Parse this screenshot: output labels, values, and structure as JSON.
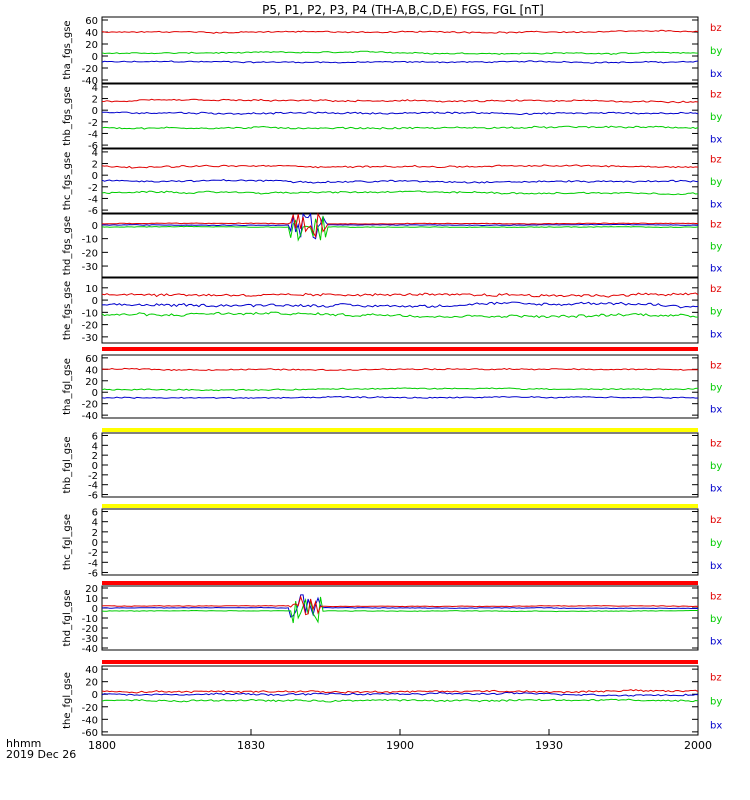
{
  "chart_data": {
    "type": "line",
    "title": "P5, P1, P2, P3, P4 (TH-A,B,C,D,E) FGS, FGL [nT]",
    "x_axis": {
      "range": [
        "1800",
        "2000"
      ],
      "ticks": [
        "1800",
        "1830",
        "1900",
        "1930",
        "2000"
      ],
      "label": "hhmm",
      "date": "2019 Dec 26"
    },
    "components": [
      {
        "name": "bz",
        "color": "#e00000"
      },
      {
        "name": "by",
        "color": "#00cc00"
      },
      {
        "name": "bx",
        "color": "#0000cc"
      }
    ],
    "panels": [
      {
        "ylabel": "tha_fgs_gse",
        "ylim": [
          -45,
          65
        ],
        "yticks": [
          "60",
          "40",
          "20",
          "0",
          "-20",
          "-40"
        ],
        "bz_level": 40,
        "by_level": 5,
        "bx_level": -10,
        "noise": 3
      },
      {
        "ylabel": "thb_fgs_gse",
        "ylim": [
          -6.5,
          4.5
        ],
        "yticks": [
          "4",
          "2",
          "0",
          "-2",
          "-4",
          "-6"
        ],
        "bz_level": 1.5,
        "by_level": -3,
        "bx_level": -0.5,
        "noise": 0.4
      },
      {
        "ylabel": "thc_fgs_gse",
        "ylim": [
          -6.5,
          4.5
        ],
        "yticks": [
          "4",
          "2",
          "0",
          "-2",
          "-4",
          "-6"
        ],
        "bz_level": 1.5,
        "by_level": -3,
        "bx_level": -1,
        "noise": 0.4
      },
      {
        "ylabel": "thd_fgs_gse",
        "ylim": [
          -38,
          8
        ],
        "yticks": [
          "0",
          "-10",
          "-20",
          "-30"
        ],
        "bz_level": 1,
        "by_level": -1.5,
        "bx_level": 0,
        "noise": 0.6,
        "disturbed": [
          1838,
          1845
        ]
      },
      {
        "ylabel": "the_fgs_gse",
        "ylim": [
          -35,
          18
        ],
        "yticks": [
          "10",
          "0",
          "-10",
          "-20",
          "-30"
        ],
        "bz_level": 5,
        "by_level": -12,
        "bx_level": -4,
        "noise": 3
      },
      {
        "ylabel": "tha_fgl_gse",
        "ylim": [
          -45,
          65
        ],
        "yticks": [
          "60",
          "40",
          "20",
          "0",
          "-20",
          "-40"
        ],
        "bz_level": 40,
        "by_level": 5,
        "bx_level": -10,
        "noise": 3
      },
      {
        "ylabel": "thb_fgl_gse",
        "ylim": [
          -6.5,
          6.5
        ],
        "yticks": [
          "6",
          "4",
          "2",
          "0",
          "-2",
          "-4",
          "-6"
        ],
        "empty": true
      },
      {
        "ylabel": "thc_fgl_gse",
        "ylim": [
          -6.5,
          6.5
        ],
        "yticks": [
          "6",
          "4",
          "2",
          "0",
          "-2",
          "-4",
          "-6"
        ],
        "empty": true
      },
      {
        "ylabel": "thd_fgl_gse",
        "ylim": [
          -42,
          22
        ],
        "yticks": [
          "20",
          "10",
          "0",
          "-10",
          "-20",
          "-30",
          "-40"
        ],
        "bz_level": 2,
        "by_level": -3,
        "bx_level": 0,
        "noise": 0.8,
        "disturbed": [
          1838,
          1844
        ]
      },
      {
        "ylabel": "the_fgl_gse",
        "ylim": [
          -65,
          45
        ],
        "yticks": [
          "40",
          "20",
          "0",
          "-20",
          "-40",
          "-60"
        ],
        "bz_level": 5,
        "by_level": -10,
        "bx_level": 0,
        "noise": 4
      }
    ],
    "mode_bars": [
      {
        "after_panel": 4,
        "color": "#ff0000"
      },
      {
        "after_panel": 5,
        "color": "#ffff00"
      },
      {
        "after_panel": 6,
        "color": "#ffff00"
      },
      {
        "after_panel": 7,
        "color": "#ff0000"
      },
      {
        "after_panel": 8,
        "color": "#ff0000"
      }
    ]
  }
}
